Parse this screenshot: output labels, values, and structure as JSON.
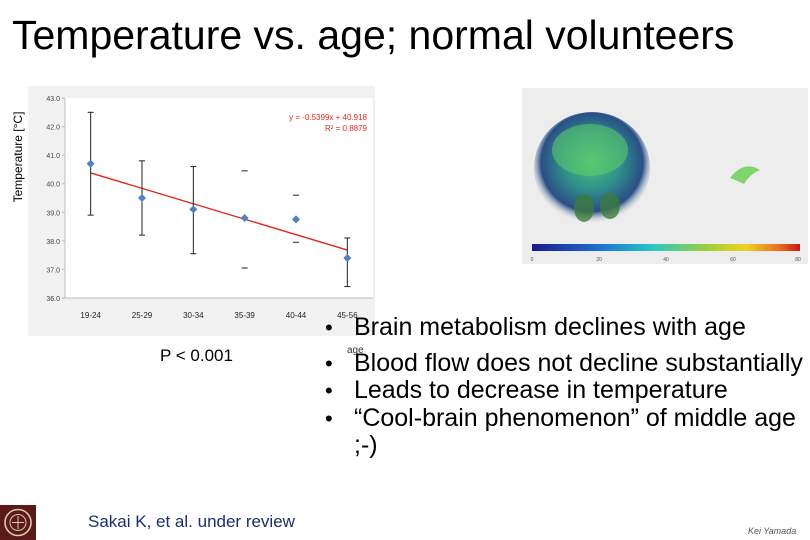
{
  "slide": {
    "title": "Temperature vs. age; normal volunteers",
    "y_axis_label": "Temperature [°C]",
    "p_value": "P < 0.001",
    "age_note": "age",
    "citation": "Sakai K, et al. under review",
    "author": "Kei Yamada"
  },
  "bullets": [
    {
      "text": "Brain metabolism declines with age"
    },
    {
      "text": "Blood flow does not decline substantially"
    },
    {
      "text": "Leads to decrease in temperature"
    },
    {
      "text": "“Cool-brain phenomenon” of middle age ;-)"
    }
  ],
  "chart_data": {
    "type": "scatter",
    "categories": [
      "19-24",
      "25-29",
      "30-34",
      "35-39",
      "40-44",
      "45-56"
    ],
    "values": [
      40.7,
      39.5,
      39.1,
      38.8,
      38.75,
      37.4
    ],
    "error_bars": [
      [
        38.9,
        42.5
      ],
      [
        38.2,
        40.8
      ],
      [
        37.55,
        40.6
      ],
      [
        38.8,
        38.8
      ],
      [
        38.75,
        38.75
      ],
      [
        36.4,
        38.1
      ]
    ],
    "error_caps_extra": [
      [
        null,
        null
      ],
      [
        null,
        null
      ],
      [
        null,
        null
      ],
      [
        37.05,
        40.45
      ],
      [
        37.95,
        39.6
      ],
      [
        null,
        null
      ]
    ],
    "trendline": {
      "slope": -0.5399,
      "intercept": 40.918
    },
    "equation_label": "y = -0.5399x + 40.918",
    "r2_label": "R² = 0.8879",
    "ylim": [
      36.0,
      43.0
    ],
    "yticks": [
      "43.0",
      "42.0",
      "41.0",
      "40.0",
      "39.0",
      "38.0",
      "37.0",
      "36.0"
    ],
    "colors": {
      "marker": "#4f81bd",
      "trendline": "#e0281e",
      "equation": "#e0281e"
    }
  },
  "colorbar": {
    "ticks": [
      "0",
      "20",
      "40",
      "60",
      "80"
    ]
  }
}
